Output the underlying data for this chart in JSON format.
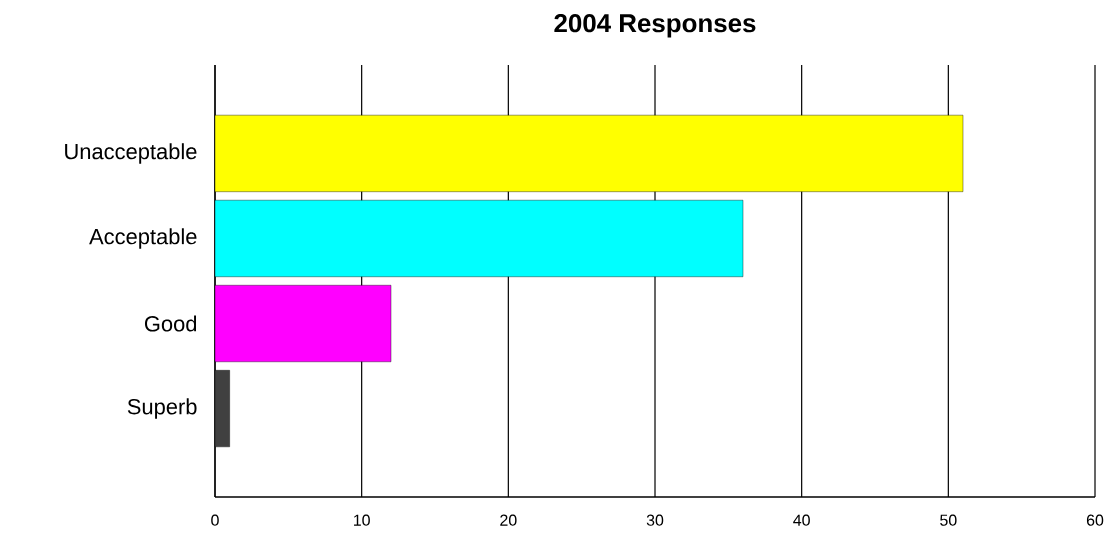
{
  "chart_data": {
    "type": "bar",
    "orientation": "horizontal",
    "title": "2004 Responses",
    "categories": [
      "Unacceptable",
      "Acceptable",
      "Good",
      "Superb"
    ],
    "values": [
      51,
      36,
      12,
      1
    ],
    "colors": [
      "#ffff00",
      "#00ffff",
      "#ff00ff",
      "#404040"
    ],
    "xlim": [
      0,
      60
    ],
    "xticks": [
      0,
      10,
      20,
      30,
      40,
      50,
      60
    ],
    "grid": "x"
  }
}
